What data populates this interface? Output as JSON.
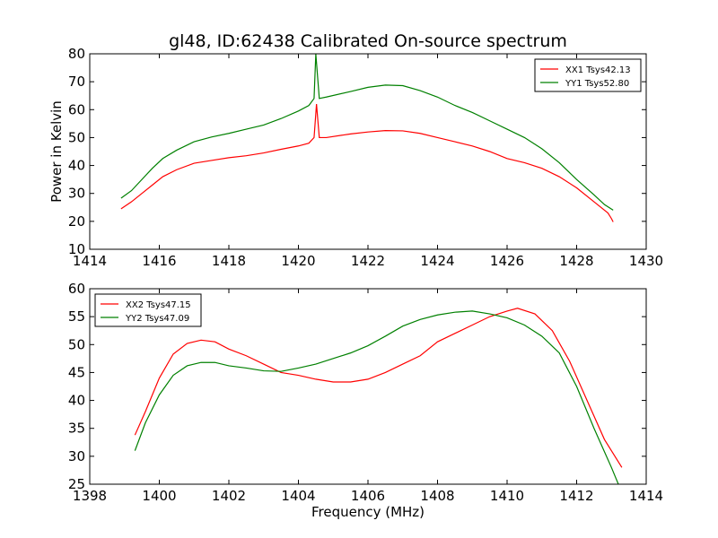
{
  "figure": {
    "title": "gl48, ID:62438 Calibrated On-source spectrum",
    "ylabel": "Power in Kelvin",
    "xlabel": "Frequency (MHz)"
  },
  "colors": {
    "red": "#ff0000",
    "green": "#008000"
  },
  "chart_data": [
    {
      "type": "line",
      "xlim": [
        1414,
        1430
      ],
      "ylim": [
        10,
        80
      ],
      "xticks": [
        1414,
        1416,
        1418,
        1420,
        1422,
        1424,
        1426,
        1428,
        1430
      ],
      "yticks": [
        10,
        20,
        30,
        40,
        50,
        60,
        70,
        80
      ],
      "legend_position": "top-right",
      "series": [
        {
          "name": "XX1 Tsys42.13",
          "color": "#ff0000",
          "points": [
            [
              1414.9,
              24.5
            ],
            [
              1415.2,
              27
            ],
            [
              1415.5,
              30
            ],
            [
              1415.8,
              33
            ],
            [
              1416.1,
              36
            ],
            [
              1416.5,
              38.5
            ],
            [
              1417,
              40.8
            ],
            [
              1417.5,
              41.8
            ],
            [
              1418,
              42.8
            ],
            [
              1418.5,
              43.5
            ],
            [
              1419,
              44.5
            ],
            [
              1419.5,
              45.8
            ],
            [
              1420,
              47
            ],
            [
              1420.3,
              48
            ],
            [
              1420.45,
              50
            ],
            [
              1420.52,
              62
            ],
            [
              1420.6,
              50
            ],
            [
              1420.8,
              50
            ],
            [
              1421.5,
              51.3
            ],
            [
              1422,
              52
            ],
            [
              1422.5,
              52.5
            ],
            [
              1423,
              52.4
            ],
            [
              1423.5,
              51.5
            ],
            [
              1424,
              50
            ],
            [
              1424.5,
              48.5
            ],
            [
              1425,
              47
            ],
            [
              1425.5,
              45
            ],
            [
              1426,
              42.5
            ],
            [
              1426.5,
              41
            ],
            [
              1427,
              39
            ],
            [
              1427.5,
              36
            ],
            [
              1428,
              32
            ],
            [
              1428.5,
              27
            ],
            [
              1428.9,
              23
            ],
            [
              1429,
              21
            ],
            [
              1429.05,
              19.8
            ]
          ]
        },
        {
          "name": "YY1 Tsys52.80",
          "color": "#008000",
          "points": [
            [
              1414.9,
              28.3
            ],
            [
              1415.2,
              31
            ],
            [
              1415.5,
              35
            ],
            [
              1415.8,
              39
            ],
            [
              1416.1,
              42.5
            ],
            [
              1416.5,
              45.5
            ],
            [
              1417,
              48.5
            ],
            [
              1417.5,
              50.2
            ],
            [
              1418,
              51.5
            ],
            [
              1418.5,
              53
            ],
            [
              1419,
              54.5
            ],
            [
              1419.5,
              56.8
            ],
            [
              1420,
              59.5
            ],
            [
              1420.3,
              61.5
            ],
            [
              1420.45,
              64
            ],
            [
              1420.5,
              80
            ],
            [
              1420.6,
              64
            ],
            [
              1420.8,
              64.5
            ],
            [
              1421.5,
              66.5
            ],
            [
              1422,
              68
            ],
            [
              1422.5,
              68.8
            ],
            [
              1423,
              68.6
            ],
            [
              1423.5,
              66.8
            ],
            [
              1424,
              64.5
            ],
            [
              1424.5,
              61.5
            ],
            [
              1425,
              59
            ],
            [
              1425.5,
              56
            ],
            [
              1426,
              53
            ],
            [
              1426.5,
              50
            ],
            [
              1427,
              46
            ],
            [
              1427.5,
              41
            ],
            [
              1428,
              35
            ],
            [
              1428.5,
              29.5
            ],
            [
              1428.8,
              26
            ],
            [
              1429.05,
              24
            ]
          ]
        }
      ]
    },
    {
      "type": "line",
      "xlim": [
        1398,
        1414
      ],
      "ylim": [
        25,
        60
      ],
      "xticks": [
        1398,
        1400,
        1402,
        1404,
        1406,
        1408,
        1410,
        1412,
        1414
      ],
      "yticks": [
        25,
        30,
        35,
        40,
        45,
        50,
        55,
        60
      ],
      "legend_position": "top-left",
      "series": [
        {
          "name": "XX2 Tsys47.15",
          "color": "#ff0000",
          "points": [
            [
              1399.3,
              33.8
            ],
            [
              1399.6,
              38
            ],
            [
              1400,
              44
            ],
            [
              1400.4,
              48.3
            ],
            [
              1400.8,
              50.2
            ],
            [
              1401.2,
              50.8
            ],
            [
              1401.6,
              50.5
            ],
            [
              1402,
              49.2
            ],
            [
              1402.5,
              48
            ],
            [
              1403,
              46.5
            ],
            [
              1403.5,
              45
            ],
            [
              1404,
              44.5
            ],
            [
              1404.5,
              43.8
            ],
            [
              1405,
              43.3
            ],
            [
              1405.5,
              43.3
            ],
            [
              1406,
              43.8
            ],
            [
              1406.5,
              45
            ],
            [
              1407,
              46.5
            ],
            [
              1407.5,
              48
            ],
            [
              1408,
              50.5
            ],
            [
              1408.5,
              52
            ],
            [
              1409,
              53.5
            ],
            [
              1409.5,
              55
            ],
            [
              1410,
              56
            ],
            [
              1410.3,
              56.5
            ],
            [
              1410.8,
              55.5
            ],
            [
              1411.3,
              52.5
            ],
            [
              1411.8,
              47
            ],
            [
              1412.3,
              40
            ],
            [
              1412.8,
              33
            ],
            [
              1413.3,
              28
            ]
          ]
        },
        {
          "name": "YY2 Tsys47.09",
          "color": "#008000",
          "points": [
            [
              1399.3,
              31
            ],
            [
              1399.6,
              36
            ],
            [
              1400,
              41
            ],
            [
              1400.4,
              44.5
            ],
            [
              1400.8,
              46.2
            ],
            [
              1401.2,
              46.8
            ],
            [
              1401.6,
              46.8
            ],
            [
              1402,
              46.2
            ],
            [
              1402.5,
              45.8
            ],
            [
              1403,
              45.3
            ],
            [
              1403.5,
              45.2
            ],
            [
              1404,
              45.8
            ],
            [
              1404.5,
              46.5
            ],
            [
              1405,
              47.5
            ],
            [
              1405.5,
              48.5
            ],
            [
              1406,
              49.8
            ],
            [
              1406.5,
              51.5
            ],
            [
              1407,
              53.3
            ],
            [
              1407.5,
              54.5
            ],
            [
              1408,
              55.3
            ],
            [
              1408.5,
              55.8
            ],
            [
              1409,
              56
            ],
            [
              1409.5,
              55.5
            ],
            [
              1410,
              54.8
            ],
            [
              1410.5,
              53.5
            ],
            [
              1411,
              51.5
            ],
            [
              1411.5,
              48.5
            ],
            [
              1412,
              42.5
            ],
            [
              1412.5,
              35
            ],
            [
              1413,
              28
            ],
            [
              1413.2,
              25
            ]
          ]
        }
      ]
    }
  ]
}
